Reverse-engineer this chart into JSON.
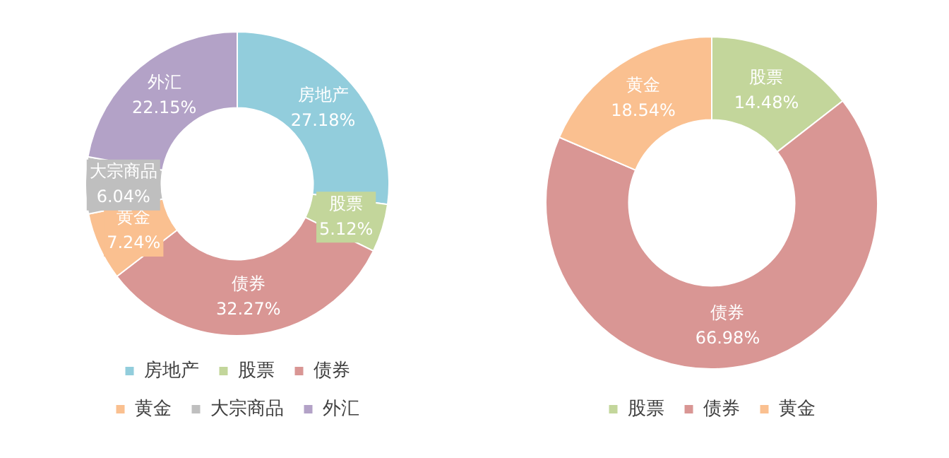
{
  "chart_data": [
    {
      "type": "donut",
      "categories": [
        "房地产",
        "股票",
        "债券",
        "黄金",
        "大宗商品",
        "外汇"
      ],
      "values": [
        27.18,
        5.12,
        32.27,
        7.24,
        6.04,
        22.15
      ],
      "colors": [
        "#92cddc",
        "#c3d69b",
        "#d99694",
        "#fac090",
        "#bfbfbf",
        "#b3a2c7"
      ],
      "value_labels": [
        "27.18%",
        "5.12%",
        "32.27%",
        "7.24%",
        "6.04%",
        "22.15%"
      ],
      "legend": "bottom"
    },
    {
      "type": "donut",
      "categories": [
        "股票",
        "债券",
        "黄金"
      ],
      "values": [
        14.48,
        66.98,
        18.54
      ],
      "colors": [
        "#c3d69b",
        "#d99694",
        "#fac090"
      ],
      "value_labels": [
        "14.48%",
        "66.98%",
        "18.54%"
      ],
      "legend": "bottom"
    }
  ]
}
